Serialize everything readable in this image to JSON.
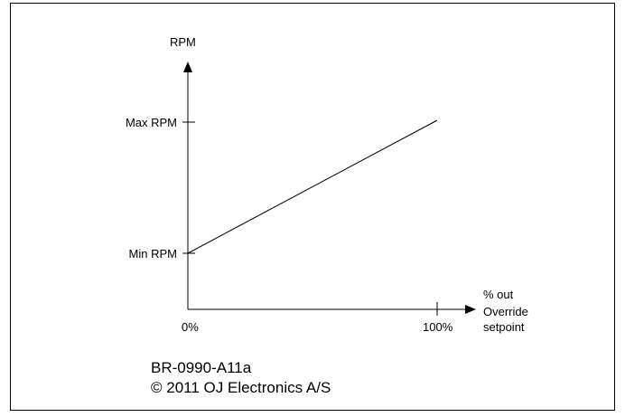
{
  "chart_data": {
    "type": "line",
    "y_axis_label": "RPM",
    "x_axis_label_lines": [
      "% out",
      "Override",
      "setpoint"
    ],
    "y_ticks": [
      "Max RPM",
      "Min RPM"
    ],
    "x_ticks": [
      "0%",
      "100%"
    ],
    "series": [
      {
        "points": [
          {
            "x": "0%",
            "y": "Min RPM"
          },
          {
            "x": "100%",
            "y": "Max RPM"
          }
        ]
      }
    ]
  },
  "caption": {
    "code": "BR-0990-A11a",
    "copyright": "© 2011 OJ Electronics A/S"
  },
  "colors": {
    "line": "#000000",
    "frame": "#000000",
    "background": "#ffffff"
  }
}
